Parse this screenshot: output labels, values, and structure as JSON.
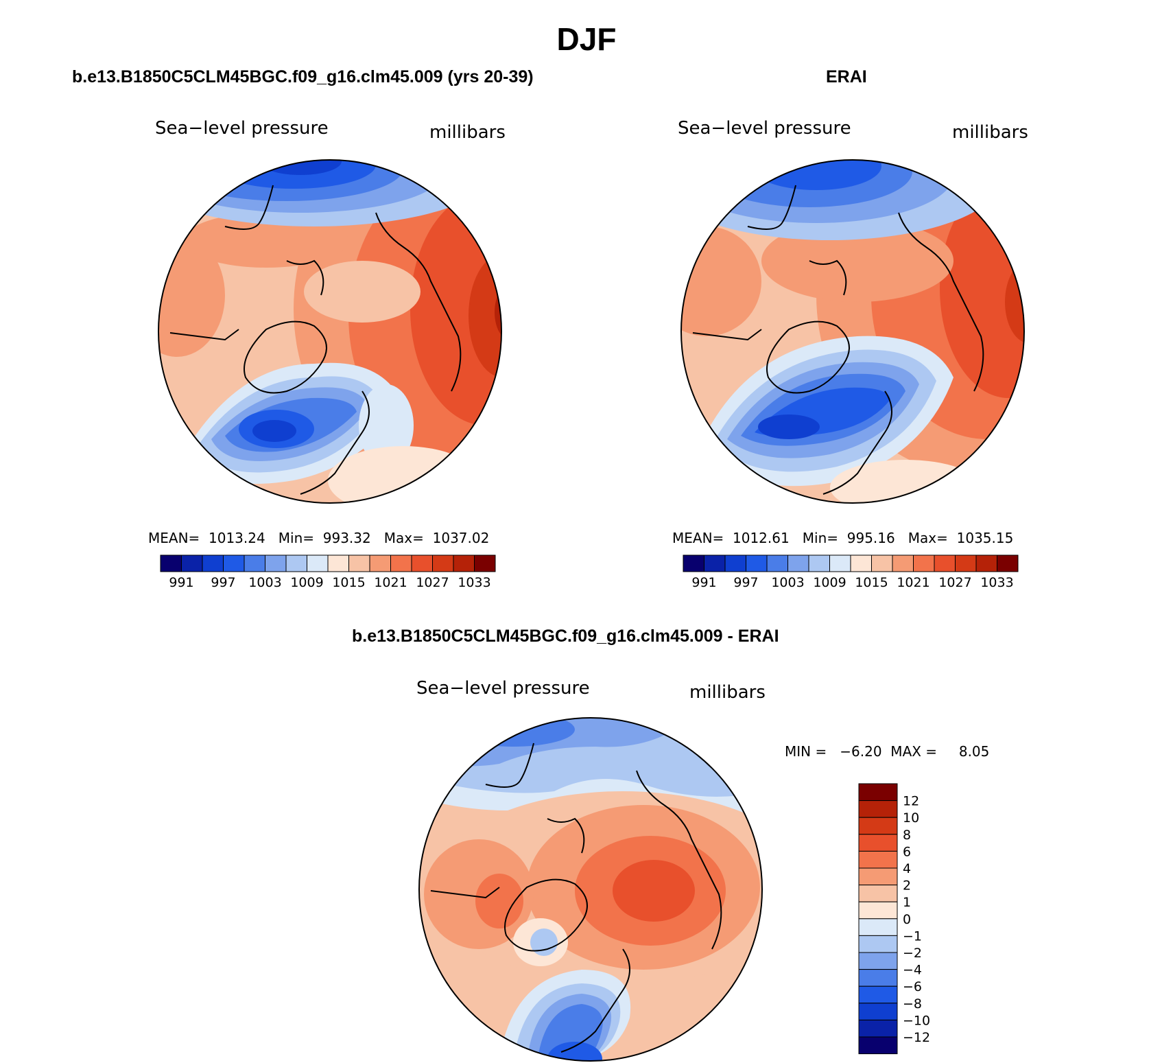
{
  "figure": {
    "title": "DJF"
  },
  "panels": {
    "model": {
      "title": "b.e13.B1850C5CLM45BGC.f09_g16.clm45.009 (yrs 20-39)",
      "variable": "Sea−level pressure",
      "units": "millibars",
      "stats": "MEAN=  1013.24   Min=  993.32   Max=  1037.02"
    },
    "obs": {
      "title": "ERAI",
      "variable": "Sea−level pressure",
      "units": "millibars",
      "stats": "MEAN=  1012.61   Min=  995.16   Max=  1035.15"
    },
    "diff": {
      "title": "b.e13.B1850C5CLM45BGC.f09_g16.clm45.009 - ERAI",
      "variable": "Sea−level pressure",
      "units": "millibars",
      "stats": "MIN =   −6.20  MAX =     8.05"
    }
  },
  "colorbars": {
    "horizontal": {
      "colors": [
        "#08006e",
        "#0a22a8",
        "#0f3fd0",
        "#1f5ae6",
        "#4a7de8",
        "#7ea3ec",
        "#adc8f2",
        "#dbe9f8",
        "#fde6d6",
        "#f7c3a6",
        "#f59b74",
        "#f2734b",
        "#e8502c",
        "#d43a16",
        "#b52208",
        "#7a0000"
      ],
      "labels": [
        "991",
        "997",
        "1003",
        "1009",
        "1015",
        "1021",
        "1027",
        "1033"
      ]
    },
    "vertical": {
      "colors_top_to_bottom": [
        "#7a0000",
        "#b52208",
        "#d43a16",
        "#e8502c",
        "#f2734b",
        "#f59b74",
        "#f7c3a6",
        "#fde6d6",
        "#dbe9f8",
        "#adc8f2",
        "#7ea3ec",
        "#4a7de8",
        "#1f5ae6",
        "#0f3fd0",
        "#0a22a8",
        "#08006e"
      ],
      "labels_top_to_bottom": [
        "12",
        "10",
        "8",
        "6",
        "4",
        "2",
        "1",
        "0",
        "−1",
        "−2",
        "−4",
        "−6",
        "−8",
        "−10",
        "−12"
      ]
    }
  }
}
